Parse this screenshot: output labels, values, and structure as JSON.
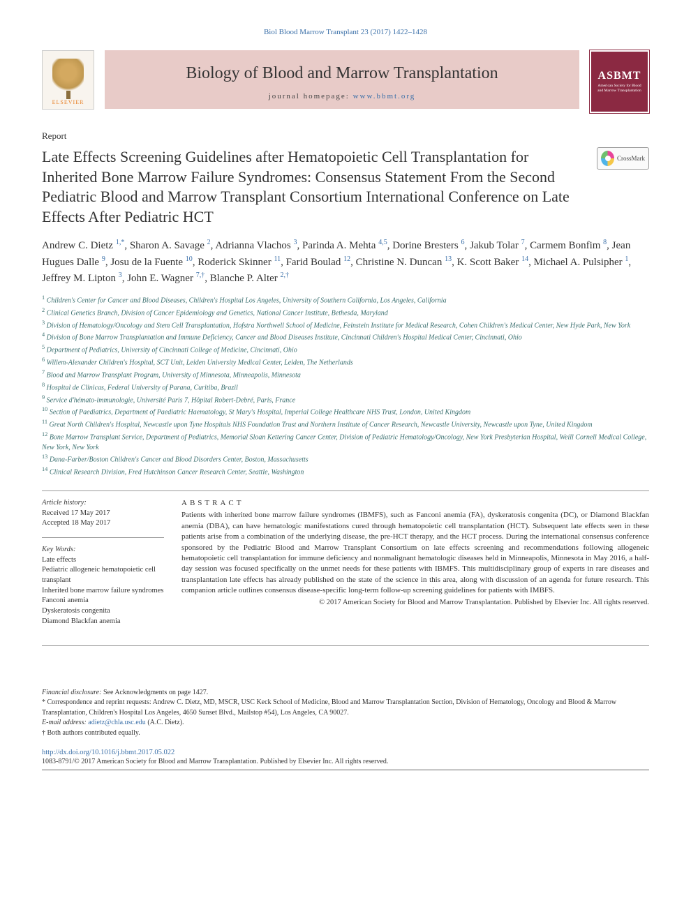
{
  "header": {
    "citation": "Biol Blood Marrow Transplant 23 (2017) 1422–1428",
    "journal_title": "Biology of Blood and Marrow Transplantation",
    "homepage_label": "journal homepage: ",
    "homepage_url": "www.bbmt.org",
    "elsevier_text": "ELSEVIER",
    "asbmt_text": "ASBMT",
    "asbmt_sub": "American Society for Blood and Marrow Transplantation"
  },
  "article": {
    "type": "Report",
    "title": "Late Effects Screening Guidelines after Hematopoietic Cell Transplantation for Inherited Bone Marrow Failure Syndromes: Consensus Statement From the Second Pediatric Blood and Marrow Transplant Consortium International Conference on Late Effects After Pediatric HCT",
    "crossmark": "CrossMark"
  },
  "authors": [
    {
      "name": "Andrew C. Dietz",
      "aff": "1,*"
    },
    {
      "name": "Sharon A. Savage",
      "aff": "2"
    },
    {
      "name": "Adrianna Vlachos",
      "aff": "3"
    },
    {
      "name": "Parinda A. Mehta",
      "aff": "4,5"
    },
    {
      "name": "Dorine Bresters",
      "aff": "6"
    },
    {
      "name": "Jakub Tolar",
      "aff": "7"
    },
    {
      "name": "Carmem Bonfim",
      "aff": "8"
    },
    {
      "name": "Jean Hugues Dalle",
      "aff": "9"
    },
    {
      "name": "Josu de la Fuente",
      "aff": "10"
    },
    {
      "name": "Roderick Skinner",
      "aff": "11"
    },
    {
      "name": "Farid Boulad",
      "aff": "12"
    },
    {
      "name": "Christine N. Duncan",
      "aff": "13"
    },
    {
      "name": "K. Scott Baker",
      "aff": "14"
    },
    {
      "name": "Michael A. Pulsipher",
      "aff": "1"
    },
    {
      "name": "Jeffrey M. Lipton",
      "aff": "3"
    },
    {
      "name": "John E. Wagner",
      "aff": "7,†"
    },
    {
      "name": "Blanche P. Alter",
      "aff": "2,†"
    }
  ],
  "affiliations": [
    {
      "n": "1",
      "text": "Children's Center for Cancer and Blood Diseases, Children's Hospital Los Angeles, University of Southern California, Los Angeles, California"
    },
    {
      "n": "2",
      "text": "Clinical Genetics Branch, Division of Cancer Epidemiology and Genetics, National Cancer Institute, Bethesda, Maryland"
    },
    {
      "n": "3",
      "text": "Division of Hematology/Oncology and Stem Cell Transplantation, Hofstra Northwell School of Medicine, Feinstein Institute for Medical Research, Cohen Children's Medical Center, New Hyde Park, New York"
    },
    {
      "n": "4",
      "text": "Division of Bone Marrow Transplantation and Immune Deficiency, Cancer and Blood Diseases Institute, Cincinnati Children's Hospital Medical Center, Cincinnati, Ohio"
    },
    {
      "n": "5",
      "text": "Department of Pediatrics, University of Cincinnati College of Medicine, Cincinnati, Ohio"
    },
    {
      "n": "6",
      "text": "Willem-Alexander Children's Hospital, SCT Unit, Leiden University Medical Center, Leiden, The Netherlands"
    },
    {
      "n": "7",
      "text": "Blood and Marrow Transplant Program, University of Minnesota, Minneapolis, Minnesota"
    },
    {
      "n": "8",
      "text": "Hospital de Clinicas, Federal University of Parana, Curitiba, Brazil"
    },
    {
      "n": "9",
      "text": "Service d'hémato-immunologie, Université Paris 7, Hôpital Robert-Debré, Paris, France"
    },
    {
      "n": "10",
      "text": "Section of Paediatrics, Department of Paediatric Haematology, St Mary's Hospital, Imperial College Healthcare NHS Trust, London, United Kingdom"
    },
    {
      "n": "11",
      "text": "Great North Children's Hospital, Newcastle upon Tyne Hospitals NHS Foundation Trust and Northern Institute of Cancer Research, Newcastle University, Newcastle upon Tyne, United Kingdom"
    },
    {
      "n": "12",
      "text": "Bone Marrow Transplant Service, Department of Pediatrics, Memorial Sloan Kettering Cancer Center, Division of Pediatric Hematology/Oncology, New York Presbyterian Hospital, Weill Cornell Medical College, New York, New York"
    },
    {
      "n": "13",
      "text": "Dana-Farber/Boston Children's Cancer and Blood Disorders Center, Boston, Massachusetts"
    },
    {
      "n": "14",
      "text": "Clinical Research Division, Fred Hutchinson Cancer Research Center, Seattle, Washington"
    }
  ],
  "history": {
    "label": "Article history:",
    "received": "Received 17 May 2017",
    "accepted": "Accepted 18 May 2017"
  },
  "keywords": {
    "label": "Key Words:",
    "items": [
      "Late effects",
      "Pediatric allogeneic hematopoietic cell transplant",
      "Inherited bone marrow failure syndromes",
      "Fanconi anemia",
      "Dyskeratosis congenita",
      "Diamond Blackfan anemia"
    ]
  },
  "abstract": {
    "label": "ABSTRACT",
    "text": "Patients with inherited bone marrow failure syndromes (IBMFS), such as Fanconi anemia (FA), dyskeratosis congenita (DC), or Diamond Blackfan anemia (DBA), can have hematologic manifestations cured through hematopoietic cell transplantation (HCT). Subsequent late effects seen in these patients arise from a combination of the underlying disease, the pre-HCT therapy, and the HCT process. During the international consensus conference sponsored by the Pediatric Blood and Marrow Transplant Consortium on late effects screening and recommendations following allogeneic hematopoietic cell transplantation for immune deficiency and nonmalignant hematologic diseases held in Minneapolis, Minnesota in May 2016, a half-day session was focused specifically on the unmet needs for these patients with IBMFS. This multidisciplinary group of experts in rare diseases and transplantation late effects has already published on the state of the science in this area, along with discussion of an agenda for future research. This companion article outlines consensus disease-specific long-term follow-up screening guidelines for patients with IMBFS.",
    "copyright": "© 2017 American Society for Blood and Marrow Transplantation. Published by Elsevier Inc. All rights reserved."
  },
  "footnotes": {
    "financial_label": "Financial disclosure:",
    "financial_text": " See Acknowledgments on page 1427.",
    "correspondence": "* Correspondence and reprint requests: Andrew C. Dietz, MD, MSCR, USC Keck School of Medicine, Blood and Marrow Transplantation Section, Division of Hematology, Oncology and Blood & Marrow Transplantation, Children's Hospital Los Angeles, 4650 Sunset Blvd., Mailstop #54), Los Angeles, CA 90027.",
    "email_label": "E-mail address: ",
    "email": "adietz@chla.usc.edu",
    "email_suffix": " (A.C. Dietz).",
    "dagger": "† Both authors contributed equally."
  },
  "footer": {
    "doi": "http://dx.doi.org/10.1016/j.bbmt.2017.05.022",
    "issn": "1083-8791/© 2017 American Society for Blood and Marrow Transplantation. Published by Elsevier Inc. All rights reserved."
  },
  "colors": {
    "link": "#3a6fa8",
    "journal_bg": "#e8cbc8",
    "asbmt_bg": "#8b2942",
    "affiliation": "#3a6f6f"
  }
}
